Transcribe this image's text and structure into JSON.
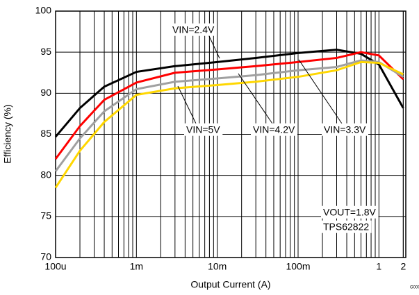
{
  "chart_data": {
    "type": "line",
    "xlabel": "Output Current (A)",
    "ylabel": "Efficiency (%)",
    "x": [
      0.0001,
      0.0002,
      0.0004,
      0.001,
      0.003,
      0.01,
      0.03,
      0.1,
      0.3,
      0.6,
      1,
      2
    ],
    "series": [
      {
        "name": "VIN=2.4V",
        "color": "#000000",
        "values": [
          84.7,
          88.2,
          90.8,
          92.6,
          93.3,
          93.8,
          94.3,
          94.9,
          95.3,
          94.8,
          93.5,
          88.2
        ]
      },
      {
        "name": "VIN=3.3V",
        "color": "#ff0000",
        "values": [
          82,
          86,
          89.2,
          91.3,
          92.5,
          92.9,
          93.3,
          93.8,
          94.3,
          95,
          94.6,
          91.7
        ]
      },
      {
        "name": "VIN=4.2V",
        "color": "#a0a0a0",
        "values": [
          80.5,
          84.5,
          87.8,
          90.5,
          91.4,
          91.8,
          92.2,
          92.8,
          93.2,
          94,
          93.8,
          92
        ]
      },
      {
        "name": "VIN=5V",
        "color": "#ffd700",
        "values": [
          78.5,
          83,
          86.5,
          89.8,
          90.6,
          91,
          91.4,
          92,
          92.8,
          93.8,
          93.7,
          92.3
        ]
      }
    ],
    "xlim": [
      0.0001,
      2.15
    ],
    "ylim": [
      70,
      100
    ],
    "xscale": "log",
    "xticks": [
      {
        "value": 0.0001,
        "label": "100u"
      },
      {
        "value": 0.001,
        "label": "1m"
      },
      {
        "value": 0.01,
        "label": "10m"
      },
      {
        "value": 0.1,
        "label": "100m"
      },
      1,
      2
    ],
    "yticks": [
      70,
      75,
      80,
      85,
      90,
      95,
      100
    ],
    "grid": true,
    "annotations": [
      "VOUT=1.8V",
      "TPS62822",
      "G000"
    ]
  }
}
